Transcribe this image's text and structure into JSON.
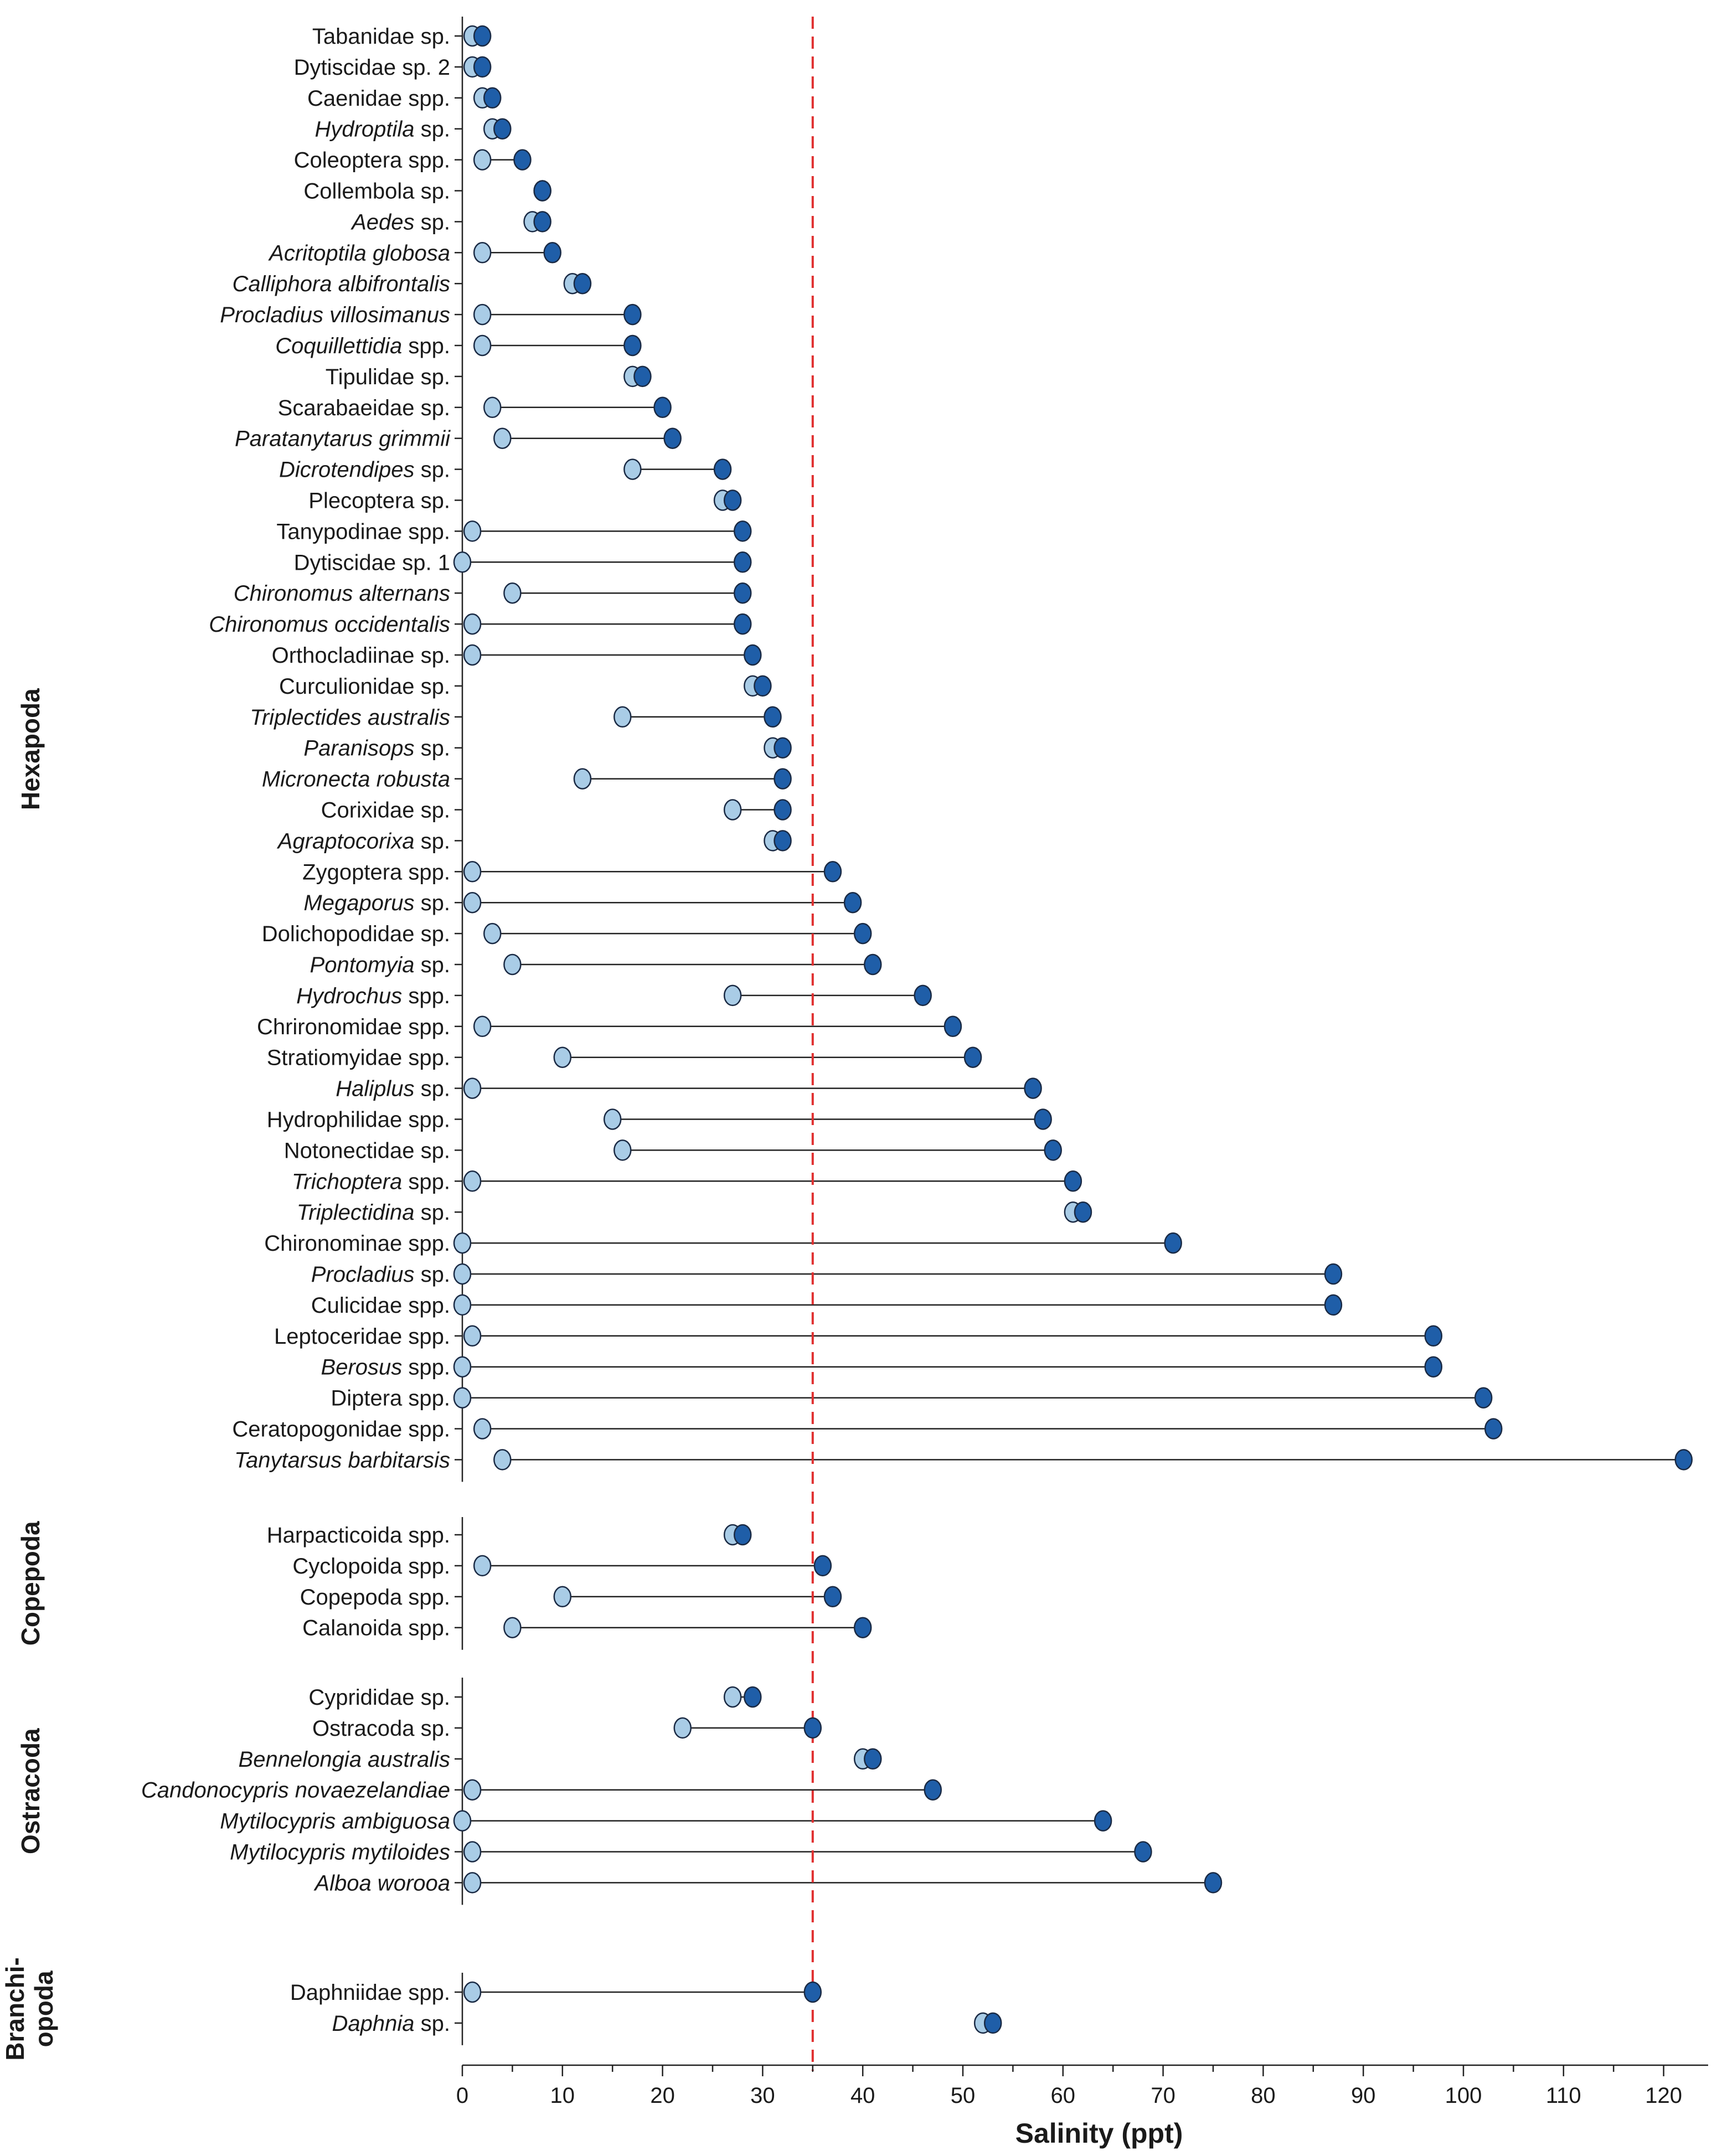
{
  "chart_data": {
    "type": "dumbbell",
    "xlabel": "Salinity (ppt)",
    "x_ticks": [
      0,
      10,
      20,
      30,
      40,
      50,
      60,
      70,
      80,
      90,
      100,
      110,
      120
    ],
    "xlim": [
      0,
      125
    ],
    "reference_line": {
      "x": 35,
      "style": "dashed",
      "color": "#e03030"
    },
    "colors": {
      "min_fill": "#a9cce6",
      "max_fill": "#1f5ea8",
      "outline": "#1a2a44",
      "connector": "#222222"
    },
    "groups": [
      {
        "name": "Hexapoda",
        "species": [
          {
            "label": "Tabanidae sp.",
            "italic": false,
            "min": 1,
            "max": 2
          },
          {
            "label": "Dytiscidae sp. 2",
            "italic": false,
            "min": 1,
            "max": 2
          },
          {
            "label": "Caenidae spp.",
            "italic": false,
            "min": 2,
            "max": 3
          },
          {
            "label": "Hydroptila",
            "suffix": " sp.",
            "italic": true,
            "min": 3,
            "max": 4
          },
          {
            "label": "Coleoptera spp.",
            "italic": false,
            "min": 2,
            "max": 6
          },
          {
            "label": "Collembola sp.",
            "italic": false,
            "min": 8,
            "max": 8
          },
          {
            "label": "Aedes",
            "suffix": " sp.",
            "italic": true,
            "min": 7,
            "max": 8
          },
          {
            "label": "Acritoptila globosa",
            "italic": true,
            "min": 2,
            "max": 9
          },
          {
            "label": "Calliphora albifrontalis",
            "italic": true,
            "min": 11,
            "max": 12
          },
          {
            "label": "Procladius villosimanus",
            "italic": true,
            "min": 2,
            "max": 17
          },
          {
            "label": "Coquillettidia",
            "suffix": " spp.",
            "italic": true,
            "min": 2,
            "max": 17
          },
          {
            "label": "Tipulidae sp.",
            "italic": false,
            "min": 17,
            "max": 18
          },
          {
            "label": "Scarabaeidae sp.",
            "italic": false,
            "min": 3,
            "max": 20
          },
          {
            "label": "Paratanytarus grimmii",
            "italic": true,
            "min": 4,
            "max": 21
          },
          {
            "label": "Dicrotendipes",
            "suffix": " sp.",
            "italic": true,
            "min": 17,
            "max": 26
          },
          {
            "label": "Plecoptera sp.",
            "italic": false,
            "min": 26,
            "max": 27
          },
          {
            "label": "Tanypodinae spp.",
            "italic": false,
            "min": 1,
            "max": 28
          },
          {
            "label": "Dytiscidae sp. 1",
            "italic": false,
            "min": 0,
            "max": 28
          },
          {
            "label": "Chironomus alternans",
            "italic": true,
            "min": 5,
            "max": 28
          },
          {
            "label": "Chironomus occidentalis",
            "italic": true,
            "min": 1,
            "max": 28
          },
          {
            "label": "Orthocladiinae sp.",
            "italic": false,
            "min": 1,
            "max": 29
          },
          {
            "label": "Curculionidae sp.",
            "italic": false,
            "min": 29,
            "max": 30
          },
          {
            "label": "Triplectides australis",
            "italic": true,
            "min": 16,
            "max": 31
          },
          {
            "label": "Paranisops",
            "suffix": " sp.",
            "italic": true,
            "min": 31,
            "max": 32
          },
          {
            "label": "Micronecta robusta",
            "italic": true,
            "min": 12,
            "max": 32
          },
          {
            "label": "Corixidae sp.",
            "italic": false,
            "min": 27,
            "max": 32
          },
          {
            "label": "Agraptocorixa",
            "suffix": " sp.",
            "italic": true,
            "min": 31,
            "max": 32
          },
          {
            "label": "Zygoptera spp.",
            "italic": false,
            "min": 1,
            "max": 37
          },
          {
            "label": "Megaporus",
            "suffix": " sp.",
            "italic": true,
            "min": 1,
            "max": 39
          },
          {
            "label": "Dolichopodidae sp.",
            "italic": false,
            "min": 3,
            "max": 40
          },
          {
            "label": "Pontomyia",
            "suffix": " sp.",
            "italic": true,
            "min": 5,
            "max": 41
          },
          {
            "label": "Hydrochus",
            "suffix": " spp.",
            "italic": true,
            "min": 27,
            "max": 46
          },
          {
            "label": "Chrironomidae spp.",
            "italic": false,
            "min": 2,
            "max": 49
          },
          {
            "label": "Stratiomyidae spp.",
            "italic": false,
            "min": 10,
            "max": 51
          },
          {
            "label": "Haliplus",
            "suffix": " sp.",
            "italic": true,
            "min": 1,
            "max": 57
          },
          {
            "label": "Hydrophilidae spp.",
            "italic": false,
            "min": 15,
            "max": 58
          },
          {
            "label": "Notonectidae sp.",
            "italic": false,
            "min": 16,
            "max": 59
          },
          {
            "label": "Trichoptera",
            "suffix": " spp.",
            "italic": true,
            "min": 1,
            "max": 61
          },
          {
            "label": "Triplectidina",
            "suffix": " sp.",
            "italic": true,
            "min": 61,
            "max": 62
          },
          {
            "label": "Chironominae spp.",
            "italic": false,
            "min": 0,
            "max": 71
          },
          {
            "label": "Procladius",
            "suffix": " sp.",
            "italic": true,
            "min": 0,
            "max": 87
          },
          {
            "label": "Culicidae spp.",
            "italic": false,
            "min": 0,
            "max": 87
          },
          {
            "label": "Leptoceridae spp.",
            "italic": false,
            "min": 1,
            "max": 97
          },
          {
            "label": "Berosus",
            "suffix": " spp.",
            "italic": true,
            "min": 0,
            "max": 97
          },
          {
            "label": "Diptera spp.",
            "italic": false,
            "min": 0,
            "max": 102
          },
          {
            "label": "Ceratopogonidae spp.",
            "italic": false,
            "min": 2,
            "max": 103
          },
          {
            "label": "Tanytarsus barbitarsis",
            "italic": true,
            "min": 4,
            "max": 122
          }
        ]
      },
      {
        "name": "Copepoda",
        "species": [
          {
            "label": "Harpacticoida spp.",
            "italic": false,
            "min": 27,
            "max": 28
          },
          {
            "label": "Cyclopoida spp.",
            "italic": false,
            "min": 2,
            "max": 36
          },
          {
            "label": "Copepoda spp.",
            "italic": false,
            "min": 10,
            "max": 37
          },
          {
            "label": "Calanoida spp.",
            "italic": false,
            "min": 5,
            "max": 40
          }
        ]
      },
      {
        "name": "Ostracoda",
        "species": [
          {
            "label": "Cyprididae sp.",
            "italic": false,
            "min": 27,
            "max": 29
          },
          {
            "label": "Ostracoda sp.",
            "italic": false,
            "min": 22,
            "max": 35
          },
          {
            "label": "Bennelongia australis",
            "italic": true,
            "min": 40,
            "max": 41
          },
          {
            "label": "Candonocypris novaezelandiae",
            "italic": true,
            "min": 1,
            "max": 47
          },
          {
            "label": "Mytilocypris ambiguosa",
            "italic": true,
            "min": 0,
            "max": 64
          },
          {
            "label": "Mytilocypris mytiloides",
            "italic": true,
            "min": 1,
            "max": 68
          },
          {
            "label": "Alboa worooa",
            "italic": true,
            "min": 1,
            "max": 75
          }
        ]
      },
      {
        "name": "Branchi-\nopoda",
        "label_lines": [
          "Branchi-",
          "opoda"
        ],
        "species": [
          {
            "label": "Daphniidae spp.",
            "italic": false,
            "min": 1,
            "max": 35
          },
          {
            "label": "Daphnia",
            "suffix": " sp.",
            "italic": true,
            "min": 52,
            "max": 53
          }
        ]
      }
    ]
  }
}
